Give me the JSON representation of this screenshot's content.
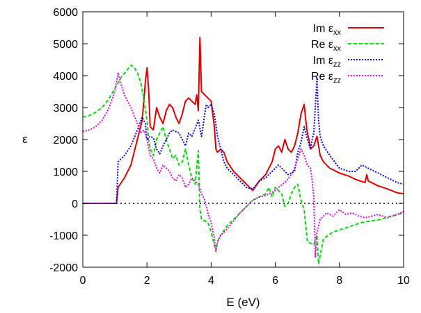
{
  "chart_data": {
    "type": "line",
    "title": "",
    "xlabel": "E (eV)",
    "ylabel": "ε",
    "xlim": [
      0,
      10
    ],
    "ylim": [
      -2000,
      6000
    ],
    "x_ticks": [
      0,
      2,
      4,
      6,
      8,
      10
    ],
    "y_ticks": [
      -2000,
      -1000,
      0,
      1000,
      2000,
      3000,
      4000,
      5000,
      6000
    ],
    "grid": false,
    "legend_position": "top-right",
    "zero_line": true,
    "series": [
      {
        "name": "Im ε",
        "subscript": "xx",
        "color": "#e00000",
        "style": "solid",
        "points": [
          [
            0,
            0
          ],
          [
            1.0,
            0
          ],
          [
            1.05,
            0
          ],
          [
            1.1,
            500
          ],
          [
            1.3,
            800
          ],
          [
            1.5,
            1200
          ],
          [
            1.7,
            2000
          ],
          [
            1.85,
            2600
          ],
          [
            1.95,
            3800
          ],
          [
            2.0,
            4250
          ],
          [
            2.05,
            3600
          ],
          [
            2.1,
            2400
          ],
          [
            2.2,
            2300
          ],
          [
            2.3,
            3000
          ],
          [
            2.4,
            2700
          ],
          [
            2.5,
            2500
          ],
          [
            2.6,
            2900
          ],
          [
            2.7,
            3100
          ],
          [
            2.8,
            3000
          ],
          [
            2.9,
            2700
          ],
          [
            3.0,
            2500
          ],
          [
            3.1,
            2800
          ],
          [
            3.2,
            3200
          ],
          [
            3.3,
            3300
          ],
          [
            3.4,
            3200
          ],
          [
            3.5,
            3100
          ],
          [
            3.55,
            3400
          ],
          [
            3.6,
            2900
          ],
          [
            3.65,
            5200
          ],
          [
            3.7,
            3500
          ],
          [
            3.8,
            3400
          ],
          [
            3.9,
            3300
          ],
          [
            4.0,
            3200
          ],
          [
            4.05,
            2800
          ],
          [
            4.1,
            2400
          ],
          [
            4.15,
            1700
          ],
          [
            4.2,
            1600
          ],
          [
            4.3,
            1700
          ],
          [
            4.4,
            1600
          ],
          [
            4.5,
            1300
          ],
          [
            4.7,
            1000
          ],
          [
            4.9,
            800
          ],
          [
            5.1,
            600
          ],
          [
            5.3,
            400
          ],
          [
            5.5,
            700
          ],
          [
            5.7,
            900
          ],
          [
            5.9,
            1300
          ],
          [
            6.0,
            1700
          ],
          [
            6.1,
            1800
          ],
          [
            6.2,
            1600
          ],
          [
            6.3,
            2000
          ],
          [
            6.4,
            1700
          ],
          [
            6.5,
            1600
          ],
          [
            6.6,
            1800
          ],
          [
            6.7,
            2200
          ],
          [
            6.8,
            2800
          ],
          [
            6.9,
            3100
          ],
          [
            6.95,
            2600
          ],
          [
            7.0,
            2200
          ],
          [
            7.05,
            2000
          ],
          [
            7.1,
            1700
          ],
          [
            7.2,
            1800
          ],
          [
            7.3,
            2100
          ],
          [
            7.4,
            1500
          ],
          [
            7.5,
            1300
          ],
          [
            7.7,
            1100
          ],
          [
            8.0,
            950
          ],
          [
            8.3,
            850
          ],
          [
            8.5,
            750
          ],
          [
            8.8,
            650
          ],
          [
            8.85,
            900
          ],
          [
            8.9,
            700
          ],
          [
            9.2,
            550
          ],
          [
            9.5,
            450
          ],
          [
            9.8,
            330
          ],
          [
            10.0,
            300
          ]
        ]
      },
      {
        "name": "Re ε",
        "subscript": "xx",
        "color": "#00dd00",
        "style": "dashed",
        "points": [
          [
            0,
            2700
          ],
          [
            0.2,
            2750
          ],
          [
            0.4,
            2850
          ],
          [
            0.6,
            3000
          ],
          [
            0.8,
            3250
          ],
          [
            1.0,
            3600
          ],
          [
            1.2,
            3950
          ],
          [
            1.4,
            4200
          ],
          [
            1.5,
            4330
          ],
          [
            1.6,
            4250
          ],
          [
            1.7,
            4100
          ],
          [
            1.8,
            3800
          ],
          [
            1.9,
            3300
          ],
          [
            2.0,
            2600
          ],
          [
            2.05,
            2000
          ],
          [
            2.1,
            1700
          ],
          [
            2.2,
            1500
          ],
          [
            2.3,
            2000
          ],
          [
            2.4,
            2200
          ],
          [
            2.5,
            2400
          ],
          [
            2.6,
            2000
          ],
          [
            2.7,
            1700
          ],
          [
            2.8,
            1400
          ],
          [
            2.9,
            1500
          ],
          [
            3.0,
            1200
          ],
          [
            3.1,
            1300
          ],
          [
            3.2,
            1700
          ],
          [
            3.3,
            1200
          ],
          [
            3.4,
            800
          ],
          [
            3.5,
            600
          ],
          [
            3.6,
            1650
          ],
          [
            3.65,
            -200
          ],
          [
            3.7,
            -500
          ],
          [
            3.9,
            -600
          ],
          [
            4.0,
            -900
          ],
          [
            4.1,
            -1300
          ],
          [
            4.15,
            -1500
          ],
          [
            4.2,
            -1200
          ],
          [
            4.3,
            -1000
          ],
          [
            4.5,
            -700
          ],
          [
            4.7,
            -500
          ],
          [
            4.9,
            -300
          ],
          [
            5.1,
            -100
          ],
          [
            5.3,
            100
          ],
          [
            5.5,
            200
          ],
          [
            5.7,
            300
          ],
          [
            5.8,
            500
          ],
          [
            5.9,
            200
          ],
          [
            6.0,
            500
          ],
          [
            6.1,
            400
          ],
          [
            6.2,
            300
          ],
          [
            6.3,
            -100
          ],
          [
            6.4,
            0
          ],
          [
            6.5,
            300
          ],
          [
            6.6,
            500
          ],
          [
            6.7,
            600
          ],
          [
            6.8,
            100
          ],
          [
            6.9,
            -200
          ],
          [
            7.0,
            -1200
          ],
          [
            7.2,
            -1300
          ],
          [
            7.3,
            -1000
          ],
          [
            7.35,
            -1900
          ],
          [
            7.5,
            -1100
          ],
          [
            7.8,
            -900
          ],
          [
            8.1,
            -800
          ],
          [
            8.4,
            -700
          ],
          [
            8.7,
            -600
          ],
          [
            9.0,
            -550
          ],
          [
            9.3,
            -500
          ],
          [
            9.6,
            -400
          ],
          [
            10.0,
            -300
          ]
        ]
      },
      {
        "name": "Im ε",
        "subscript": "zz",
        "color": "#0000ff",
        "style": "dotted",
        "points": [
          [
            0,
            0
          ],
          [
            1.0,
            0
          ],
          [
            1.05,
            0
          ],
          [
            1.1,
            1300
          ],
          [
            1.3,
            1500
          ],
          [
            1.5,
            1800
          ],
          [
            1.7,
            2300
          ],
          [
            1.85,
            2700
          ],
          [
            1.95,
            2500
          ],
          [
            2.0,
            2000
          ],
          [
            2.1,
            2100
          ],
          [
            2.2,
            2050
          ],
          [
            2.3,
            1700
          ],
          [
            2.4,
            1550
          ],
          [
            2.5,
            1800
          ],
          [
            2.7,
            2200
          ],
          [
            2.8,
            2300
          ],
          [
            3.0,
            2200
          ],
          [
            3.1,
            2000
          ],
          [
            3.2,
            1800
          ],
          [
            3.3,
            2200
          ],
          [
            3.4,
            2100
          ],
          [
            3.5,
            2350
          ],
          [
            3.6,
            2600
          ],
          [
            3.7,
            2100
          ],
          [
            3.8,
            2800
          ],
          [
            3.85,
            3100
          ],
          [
            3.9,
            3000
          ],
          [
            4.0,
            3100
          ],
          [
            4.1,
            2800
          ],
          [
            4.2,
            2100
          ],
          [
            4.3,
            1700
          ],
          [
            4.4,
            1300
          ],
          [
            4.5,
            1100
          ],
          [
            4.7,
            900
          ],
          [
            4.9,
            700
          ],
          [
            5.1,
            500
          ],
          [
            5.3,
            450
          ],
          [
            5.5,
            700
          ],
          [
            5.7,
            800
          ],
          [
            5.9,
            1000
          ],
          [
            6.0,
            1100
          ],
          [
            6.1,
            1200
          ],
          [
            6.3,
            1000
          ],
          [
            6.4,
            900
          ],
          [
            6.6,
            1000
          ],
          [
            6.7,
            1600
          ],
          [
            6.8,
            1900
          ],
          [
            6.9,
            2400
          ],
          [
            7.0,
            2000
          ],
          [
            7.1,
            1700
          ],
          [
            7.15,
            2000
          ],
          [
            7.2,
            2200
          ],
          [
            7.3,
            3900
          ],
          [
            7.35,
            2600
          ],
          [
            7.4,
            2100
          ],
          [
            7.5,
            1800
          ],
          [
            7.7,
            1500
          ],
          [
            8.0,
            1100
          ],
          [
            8.3,
            1000
          ],
          [
            8.5,
            1000
          ],
          [
            8.7,
            1200
          ],
          [
            8.9,
            1100
          ],
          [
            9.2,
            950
          ],
          [
            9.5,
            800
          ],
          [
            9.8,
            650
          ],
          [
            10.0,
            600
          ]
        ]
      },
      {
        "name": "Re ε",
        "subscript": "zz",
        "color": "#ee00ee",
        "style": "dotted",
        "points": [
          [
            0,
            2250
          ],
          [
            0.2,
            2300
          ],
          [
            0.4,
            2400
          ],
          [
            0.6,
            2600
          ],
          [
            0.8,
            2950
          ],
          [
            1.0,
            3500
          ],
          [
            1.1,
            4100
          ],
          [
            1.2,
            3700
          ],
          [
            1.3,
            3400
          ],
          [
            1.5,
            3000
          ],
          [
            1.7,
            2500
          ],
          [
            1.8,
            2200
          ],
          [
            1.9,
            2300
          ],
          [
            2.0,
            2000
          ],
          [
            2.1,
            1500
          ],
          [
            2.2,
            1400
          ],
          [
            2.3,
            1100
          ],
          [
            2.4,
            950
          ],
          [
            2.5,
            1200
          ],
          [
            2.6,
            1100
          ],
          [
            2.7,
            1000
          ],
          [
            2.8,
            800
          ],
          [
            2.9,
            700
          ],
          [
            3.0,
            900
          ],
          [
            3.1,
            800
          ],
          [
            3.2,
            500
          ],
          [
            3.3,
            600
          ],
          [
            3.4,
            800
          ],
          [
            3.5,
            700
          ],
          [
            3.6,
            600
          ],
          [
            3.7,
            300
          ],
          [
            3.8,
            100
          ],
          [
            3.9,
            -300
          ],
          [
            4.0,
            -600
          ],
          [
            4.1,
            -1100
          ],
          [
            4.15,
            -1500
          ],
          [
            4.2,
            -1200
          ],
          [
            4.3,
            -1000
          ],
          [
            4.5,
            -800
          ],
          [
            4.7,
            -550
          ],
          [
            4.9,
            -300
          ],
          [
            5.1,
            -100
          ],
          [
            5.3,
            100
          ],
          [
            5.5,
            200
          ],
          [
            5.7,
            250
          ],
          [
            5.9,
            350
          ],
          [
            6.0,
            400
          ],
          [
            6.1,
            500
          ],
          [
            6.3,
            650
          ],
          [
            6.5,
            900
          ],
          [
            6.6,
            1100
          ],
          [
            6.7,
            1400
          ],
          [
            6.8,
            1700
          ],
          [
            6.9,
            1500
          ],
          [
            7.0,
            1200
          ],
          [
            7.1,
            1100
          ],
          [
            7.15,
            700
          ],
          [
            7.2,
            200
          ],
          [
            7.25,
            -1700
          ],
          [
            7.3,
            -900
          ],
          [
            7.4,
            -500
          ],
          [
            7.6,
            -300
          ],
          [
            7.8,
            -400
          ],
          [
            8.0,
            -200
          ],
          [
            8.2,
            -350
          ],
          [
            8.4,
            -300
          ],
          [
            8.6,
            -400
          ],
          [
            8.8,
            -450
          ],
          [
            9.0,
            -400
          ],
          [
            9.2,
            -350
          ],
          [
            9.5,
            -450
          ],
          [
            9.8,
            -350
          ],
          [
            10.0,
            -250
          ]
        ]
      }
    ]
  }
}
